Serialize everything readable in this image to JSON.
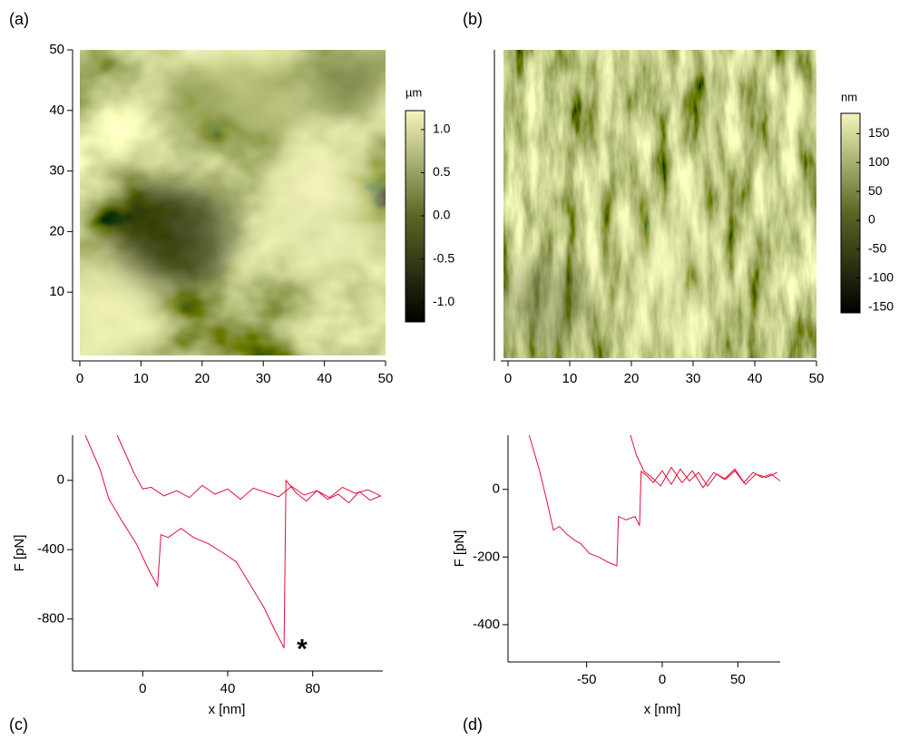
{
  "chart_data": [
    {
      "type": "heatmap",
      "panel": "(a)",
      "xlim": [
        0,
        50
      ],
      "xticks": [
        0,
        10,
        20,
        30,
        40,
        50
      ],
      "ylim": [
        0,
        50
      ],
      "yticks": [
        10,
        20,
        30,
        40,
        50
      ],
      "colorbar": {
        "label": "µm",
        "lim": [
          -1.23,
          1.22
        ],
        "colors": [
          "#000000",
          "#5a6624",
          "#f4f6bc"
        ],
        "ticks": [
          {
            "value": 1,
            "label": "1.0"
          },
          0.5,
          {
            "value": 0,
            "label": "0.0"
          },
          -0.5,
          {
            "value": -1,
            "label": "-1.0"
          }
        ]
      }
    },
    {
      "type": "heatmap",
      "panel": "(b)",
      "xlim": [
        0,
        50
      ],
      "xticks": [
        0,
        10,
        20,
        30,
        40,
        50
      ],
      "ylim": [
        0,
        50
      ],
      "colorbar": {
        "label": "nm",
        "lim": [
          -160,
          185
        ],
        "colors": [
          "#000000",
          "#5a6624",
          "#f4f6bc"
        ],
        "ticks": [
          150,
          100,
          50,
          0,
          -50,
          -100,
          -150
        ]
      }
    },
    {
      "type": "line",
      "panel": "(c)",
      "xlabel": "x [nm]",
      "ylabel": "F [pN]",
      "xlim": [
        -33,
        113
      ],
      "xticks": [
        0,
        40,
        80
      ],
      "ylim": [
        -1100,
        260
      ],
      "yticks": [
        0,
        -400,
        -800
      ],
      "annotation": {
        "text": "*",
        "x": 75,
        "y": -940
      },
      "series": [
        {
          "color": "#e0103a",
          "x": [
            -12,
            -8,
            -4,
            0,
            4,
            10,
            16,
            22,
            28,
            34,
            40,
            46,
            52,
            58,
            64,
            70,
            76,
            82,
            88,
            94,
            100,
            106,
            112
          ],
          "values": [
            260,
            150,
            40,
            -50,
            -40,
            -90,
            -60,
            -100,
            -30,
            -80,
            -50,
            -110,
            -45,
            -70,
            -95,
            -35,
            -85,
            -60,
            -100,
            -40,
            -75,
            -55,
            -90
          ]
        },
        {
          "color": "#e0103a",
          "x": [
            -27,
            -20,
            -16,
            -10,
            -3,
            3,
            7,
            8.6,
            12,
            18,
            24,
            31,
            38,
            44,
            50,
            57,
            62,
            66.5,
            67.4,
            72,
            77,
            82,
            87,
            92,
            97,
            102,
            107,
            112
          ],
          "values": [
            260,
            60,
            -105,
            -230,
            -366,
            -520,
            -610,
            -314,
            -330,
            -277,
            -330,
            -366,
            -420,
            -470,
            -590,
            -732,
            -860,
            -967,
            0,
            -70,
            -120,
            -60,
            -110,
            -80,
            -130,
            -65,
            -115,
            -90
          ]
        }
      ]
    },
    {
      "type": "line",
      "panel": "(d)",
      "xlabel": "x [nm]",
      "ylabel": "F [pN]",
      "xlim": [
        -102,
        78
      ],
      "xticks": [
        -50,
        0,
        50
      ],
      "ylim": [
        -510,
        160
      ],
      "yticks": [
        0,
        -200,
        -400
      ],
      "series": [
        {
          "color": "#e0103a",
          "x": [
            -88,
            -81,
            -76,
            -72,
            -68,
            -63,
            -58,
            -54,
            -48,
            -42,
            -36,
            -30,
            -29,
            -24,
            -18,
            -15,
            -14,
            -10,
            -6,
            0,
            6,
            12,
            18,
            24,
            30,
            36,
            42,
            48,
            54,
            60,
            66,
            72,
            78
          ],
          "values": [
            160,
            53,
            -40,
            -120,
            -110,
            -133,
            -150,
            -160,
            -190,
            -200,
            -215,
            -226,
            -80,
            -90,
            -80,
            -107,
            53,
            40,
            20,
            55,
            15,
            60,
            25,
            50,
            10,
            45,
            30,
            55,
            20,
            50,
            35,
            45,
            25
          ]
        },
        {
          "color": "#e0103a",
          "x": [
            -21,
            -17,
            -12,
            -8,
            -1,
            6,
            13,
            20,
            27,
            34,
            41,
            48,
            55,
            62,
            69,
            76
          ],
          "values": [
            160,
            100,
            53,
            40,
            10,
            65,
            20,
            55,
            5,
            50,
            30,
            60,
            15,
            45,
            35,
            50
          ]
        }
      ]
    }
  ]
}
